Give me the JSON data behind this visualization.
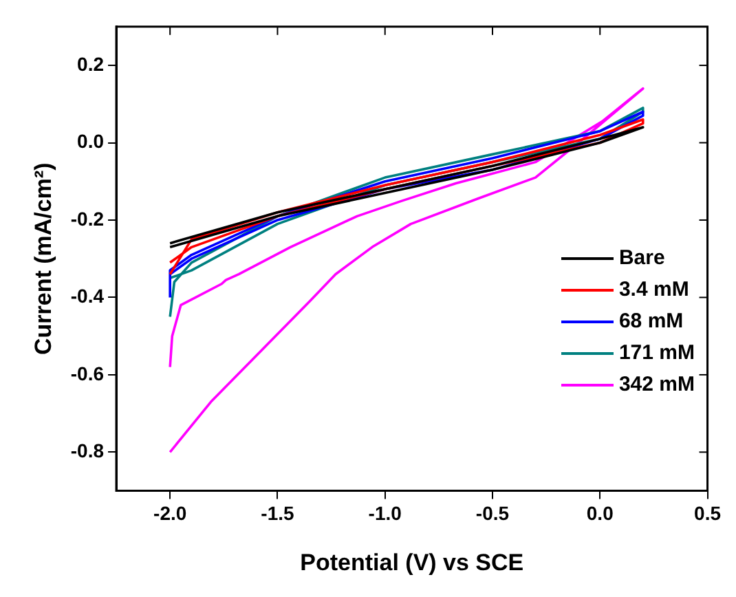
{
  "chart_data": {
    "type": "line",
    "xlabel": "Potential (V) vs SCE",
    "ylabel": "Current (mA/cm²)",
    "xlim": [
      -2.25,
      0.5
    ],
    "xticks": [
      {
        "value": -2.0,
        "label": "-2.0"
      },
      {
        "value": -1.5,
        "label": "-1.5"
      },
      {
        "value": -1.0,
        "label": "-1.0"
      },
      {
        "value": -0.5,
        "label": "-0.5"
      },
      {
        "value": 0,
        "label": "0.0"
      },
      {
        "value": 0.5,
        "label": "0.5"
      }
    ],
    "ylim": [
      -0.9,
      0.3
    ],
    "yticks": [
      {
        "value": -0.8,
        "label": "-0.8"
      },
      {
        "value": -0.6,
        "label": "-0.6"
      },
      {
        "value": -0.4,
        "label": "-0.4"
      },
      {
        "value": -0.2,
        "label": "-0.2"
      },
      {
        "value": 0,
        "label": "0.0"
      },
      {
        "value": 0.2,
        "label": "0.2"
      }
    ],
    "grid": false,
    "legend": "right",
    "marker": "none",
    "line_style": "solid",
    "series": [
      {
        "name": "Bare",
        "color": "#000000",
        "x": [
          -2.0,
          -1.5,
          -1.0,
          -0.5,
          0,
          0.2,
          0.2,
          0,
          -0.5,
          -1.0,
          -1.5,
          -2.0
        ],
        "values": [
          -0.26,
          -0.18,
          -0.12,
          -0.06,
          0.01,
          0.04,
          0.04,
          0.0,
          -0.07,
          -0.13,
          -0.19,
          -0.27
        ]
      },
      {
        "name": "3.4 mM",
        "color": "#ff0000",
        "x": [
          -2.0,
          -1.9,
          -1.5,
          -1.0,
          -0.5,
          0,
          0.2,
          0.2,
          0,
          -0.5,
          -1.0,
          -1.5,
          -1.9,
          -2.0
        ],
        "values": [
          -0.34,
          -0.25,
          -0.18,
          -0.11,
          -0.05,
          0.02,
          0.06,
          0.05,
          0.0,
          -0.06,
          -0.12,
          -0.19,
          -0.27,
          -0.31
        ]
      },
      {
        "name": "68 mM",
        "color": "#0000ff",
        "x": [
          -2.0,
          -2.0,
          -1.9,
          -1.5,
          -1.0,
          -0.5,
          0,
          0.2,
          0.2,
          0,
          -0.5,
          -1.0,
          -1.5,
          -1.9,
          -2.0
        ],
        "values": [
          -0.4,
          -0.33,
          -0.29,
          -0.19,
          -0.1,
          -0.04,
          0.03,
          0.08,
          0.07,
          0.01,
          -0.07,
          -0.12,
          -0.2,
          -0.3,
          -0.34
        ]
      },
      {
        "name": "171 mM",
        "color": "#008080",
        "x": [
          -2.0,
          -1.98,
          -1.9,
          -1.5,
          -1.0,
          -0.5,
          0,
          0.2,
          0.2,
          0,
          -0.5,
          -1.0,
          -1.5,
          -1.9,
          -2.0
        ],
        "values": [
          -0.45,
          -0.36,
          -0.31,
          -0.19,
          -0.09,
          -0.03,
          0.03,
          0.09,
          0.08,
          0.01,
          -0.05,
          -0.11,
          -0.21,
          -0.33,
          -0.35
        ]
      },
      {
        "name": "342 mM",
        "color": "#ff00ff",
        "x": [
          -2.0,
          -1.81,
          -1.35,
          -1.23,
          -1.06,
          -0.88,
          -0.57,
          -0.3,
          -0.1,
          0.2,
          0.01,
          -0.3,
          -0.67,
          -0.92,
          -1.13,
          -1.44,
          -1.68,
          -1.74,
          -1.76,
          -1.95,
          -1.99,
          -2.0
        ],
        "values": [
          -0.8,
          -0.67,
          -0.41,
          -0.34,
          -0.27,
          -0.21,
          -0.145,
          -0.09,
          0.0,
          0.14,
          0.055,
          -0.05,
          -0.105,
          -0.15,
          -0.19,
          -0.27,
          -0.34,
          -0.355,
          -0.365,
          -0.42,
          -0.5,
          -0.58
        ]
      }
    ]
  }
}
